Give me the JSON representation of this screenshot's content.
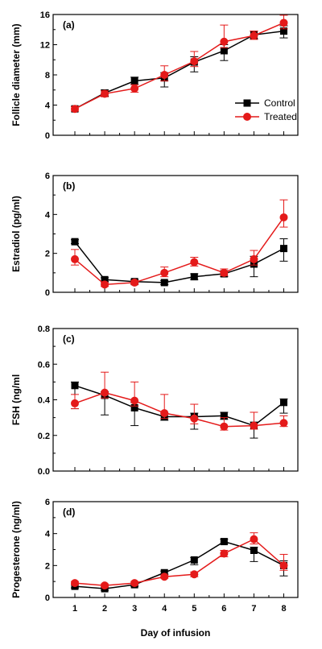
{
  "chart_data": [
    {
      "type": "line",
      "panel_label": "(a)",
      "ylabel": "Follicle diameter (mm)",
      "ylim": [
        0,
        16
      ],
      "yticks": [
        "0",
        "4",
        "8",
        "12",
        "16"
      ],
      "legend": {
        "position": "right",
        "entries": [
          "Control",
          "Treated"
        ]
      },
      "series": [
        {
          "name": "Control",
          "color": "#000000",
          "marker": "square",
          "values": [
            3.5,
            5.6,
            7.2,
            7.6,
            9.7,
            11.2,
            13.3,
            13.8
          ],
          "err_up": [
            0.3,
            0.4,
            0.5,
            0.7,
            0.7,
            0.8,
            0.5,
            0.7
          ],
          "err_down": [
            0.3,
            0.4,
            0.5,
            1.2,
            1.3,
            1.3,
            0.5,
            0.9
          ]
        },
        {
          "name": "Treated",
          "color": "#e41a1a",
          "marker": "circle",
          "values": [
            3.5,
            5.5,
            6.2,
            8.0,
            9.8,
            12.4,
            13.2,
            14.9
          ],
          "err_up": [
            0.3,
            0.4,
            0.5,
            1.2,
            1.3,
            2.2,
            0.6,
            1.0
          ],
          "err_down": [
            0.3,
            0.4,
            0.5,
            0.8,
            0.7,
            0.8,
            0.5,
            0.8
          ]
        }
      ]
    },
    {
      "type": "line",
      "panel_label": "(b)",
      "ylabel": "Estradiol (pg/ml)",
      "ylim": [
        0,
        6
      ],
      "yticks": [
        "0",
        "2",
        "4",
        "6"
      ],
      "series": [
        {
          "name": "Control",
          "color": "#000000",
          "marker": "square",
          "values": [
            2.6,
            0.65,
            0.55,
            0.5,
            0.8,
            0.95,
            1.45,
            2.25
          ],
          "err_up": [
            0.1,
            0.1,
            0.1,
            0.1,
            0.15,
            0.15,
            0.4,
            0.5
          ],
          "err_down": [
            0.1,
            0.1,
            0.1,
            0.1,
            0.15,
            0.15,
            0.65,
            0.65
          ]
        },
        {
          "name": "Treated",
          "color": "#e41a1a",
          "marker": "circle",
          "values": [
            1.7,
            0.4,
            0.5,
            1.0,
            1.55,
            1.0,
            1.7,
            3.85
          ],
          "err_up": [
            0.5,
            0.1,
            0.1,
            0.3,
            0.25,
            0.2,
            0.45,
            0.9
          ],
          "err_down": [
            0.3,
            0.1,
            0.1,
            0.2,
            0.2,
            0.15,
            0.3,
            0.5
          ]
        }
      ]
    },
    {
      "type": "line",
      "panel_label": "(c)",
      "ylabel": "FSH (ng/ml",
      "ylim": [
        0,
        0.8
      ],
      "yticks": [
        "0.0",
        "0.2",
        "0.4",
        "0.6",
        "0.8"
      ],
      "series": [
        {
          "name": "Control",
          "color": "#000000",
          "marker": "square",
          "values": [
            0.48,
            0.425,
            0.355,
            0.305,
            0.305,
            0.31,
            0.255,
            0.385
          ],
          "err_up": [
            0.02,
            0.02,
            0.03,
            0.02,
            0.02,
            0.02,
            0.02,
            0.02
          ],
          "err_down": [
            0.13,
            0.11,
            0.1,
            0.02,
            0.07,
            0.02,
            0.07,
            0.06
          ]
        },
        {
          "name": "Treated",
          "color": "#e41a1a",
          "marker": "circle",
          "values": [
            0.38,
            0.44,
            0.395,
            0.325,
            0.295,
            0.25,
            0.255,
            0.27
          ],
          "err_up": [
            0.05,
            0.115,
            0.105,
            0.105,
            0.08,
            0.05,
            0.075,
            0.04
          ],
          "err_down": [
            0.03,
            0.03,
            0.03,
            0.03,
            0.03,
            0.02,
            0.02,
            0.02
          ]
        }
      ]
    },
    {
      "type": "line",
      "panel_label": "(d)",
      "ylabel": "Progesterone (ng/ml)",
      "ylim": [
        0,
        6
      ],
      "yticks": [
        "0",
        "2",
        "4",
        "6"
      ],
      "xlabel": "Day of infusion",
      "categories": [
        "1",
        "2",
        "3",
        "4",
        "5",
        "6",
        "7",
        "8"
      ],
      "series": [
        {
          "name": "Control",
          "color": "#000000",
          "marker": "square",
          "values": [
            0.7,
            0.55,
            0.8,
            1.55,
            2.35,
            3.5,
            2.95,
            2.0
          ],
          "err_up": [
            0.1,
            0.1,
            0.1,
            0.1,
            0.15,
            0.15,
            0.2,
            0.3
          ],
          "err_down": [
            0.1,
            0.1,
            0.1,
            0.1,
            0.3,
            0.15,
            0.7,
            0.65
          ]
        },
        {
          "name": "Treated",
          "color": "#e41a1a",
          "marker": "circle",
          "values": [
            0.9,
            0.75,
            0.9,
            1.3,
            1.45,
            2.75,
            3.65,
            2.0
          ],
          "err_up": [
            0.1,
            0.1,
            0.1,
            0.1,
            0.15,
            0.2,
            0.4,
            0.7
          ],
          "err_down": [
            0.1,
            0.1,
            0.1,
            0.1,
            0.15,
            0.2,
            0.3,
            0.3
          ]
        }
      ]
    }
  ]
}
